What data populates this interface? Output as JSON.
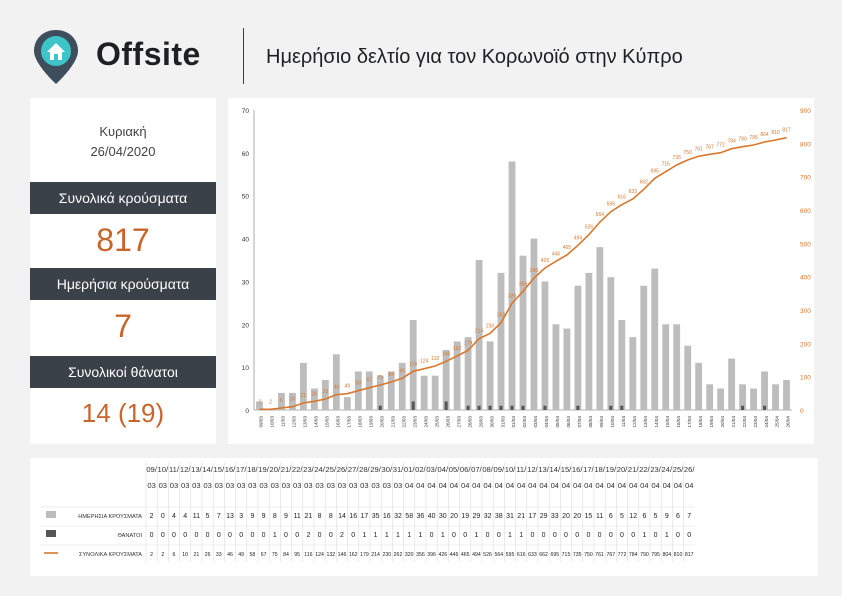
{
  "header": {
    "brand": "Offsite",
    "title": "Ημερήσιο δελτίο για τον Κορωνοϊό στην Κύπρο"
  },
  "summary": {
    "day": "Κυριακή",
    "date": "26/04/2020",
    "total_cases_label": "Συνολικά κρούσματα",
    "total_cases": "817",
    "daily_cases_label": "Ημερήσια κρούσματα",
    "daily_cases": "7",
    "total_deaths_label": "Συνολικοί θάνατοι",
    "total_deaths": "14 (19)"
  },
  "colors": {
    "bars": "#bdbdbd",
    "deaths": "#555555",
    "line": "#d9772e",
    "dark": "#3b4148",
    "accent": "#c8652a"
  },
  "chart_data": {
    "type": "bar",
    "title": "",
    "categories": [
      "09/03",
      "10/03",
      "11/03",
      "12/03",
      "13/03",
      "14/03",
      "15/03",
      "16/03",
      "17/03",
      "18/03",
      "19/03",
      "20/03",
      "21/03",
      "22/03",
      "23/03",
      "24/03",
      "25/03",
      "26/03",
      "27/03",
      "28/03",
      "29/03",
      "30/03",
      "31/03",
      "01/04",
      "02/04",
      "03/04",
      "04/04",
      "05/04",
      "06/04",
      "07/04",
      "08/04",
      "09/04",
      "10/04",
      "11/04",
      "12/04",
      "13/04",
      "14/04",
      "15/04",
      "16/04",
      "17/04",
      "18/04",
      "19/04",
      "20/04",
      "21/04",
      "22/04",
      "23/04",
      "24/04",
      "25/04",
      "26/04"
    ],
    "series": [
      {
        "name": "ΗΜΕΡΗΣΙΑ ΚΡΟΥΣΜΑΤΑ",
        "type": "bar",
        "axis": "left",
        "values": [
          2,
          0,
          4,
          4,
          11,
          5,
          7,
          13,
          3,
          9,
          9,
          8,
          9,
          11,
          21,
          8,
          8,
          14,
          16,
          17,
          35,
          16,
          32,
          58,
          36,
          40,
          30,
          20,
          19,
          29,
          32,
          38,
          31,
          21,
          17,
          29,
          33,
          20,
          20,
          15,
          11,
          6,
          5,
          12,
          6,
          5,
          9,
          6,
          7
        ]
      },
      {
        "name": "ΘΑΝΑΤΟΙ",
        "type": "bar",
        "axis": "left",
        "values": [
          0,
          0,
          0,
          0,
          0,
          0,
          0,
          0,
          0,
          0,
          0,
          1,
          0,
          0,
          2,
          0,
          0,
          2,
          0,
          1,
          1,
          1,
          1,
          1,
          1,
          0,
          1,
          0,
          0,
          1,
          0,
          0,
          1,
          1,
          0,
          0,
          0,
          0,
          0,
          0,
          0,
          0,
          0,
          0,
          1,
          0,
          1,
          0,
          0
        ]
      },
      {
        "name": "ΣΥΝΟΛΙΚΑ ΚΡΟΥΣΜΑΤΑ",
        "type": "line",
        "axis": "right",
        "values": [
          2,
          2,
          6,
          10,
          21,
          26,
          33,
          46,
          49,
          58,
          67,
          75,
          84,
          95,
          116,
          124,
          132,
          146,
          162,
          179,
          214,
          230,
          262,
          320,
          356,
          396,
          426,
          446,
          465,
          494,
          526,
          564,
          595,
          616,
          633,
          662,
          695,
          715,
          735,
          750,
          761,
          767,
          772,
          784,
          790,
          795,
          804,
          810,
          817
        ]
      }
    ],
    "left_axis": {
      "min": 0,
      "max": 70,
      "ticks": [
        0,
        10,
        20,
        30,
        40,
        50,
        60,
        70
      ]
    },
    "right_axis": {
      "min": 0,
      "max": 900,
      "ticks": [
        0,
        100,
        200,
        300,
        400,
        500,
        600,
        700,
        800,
        900
      ]
    },
    "grid": false,
    "legend": "bottom (table)"
  }
}
